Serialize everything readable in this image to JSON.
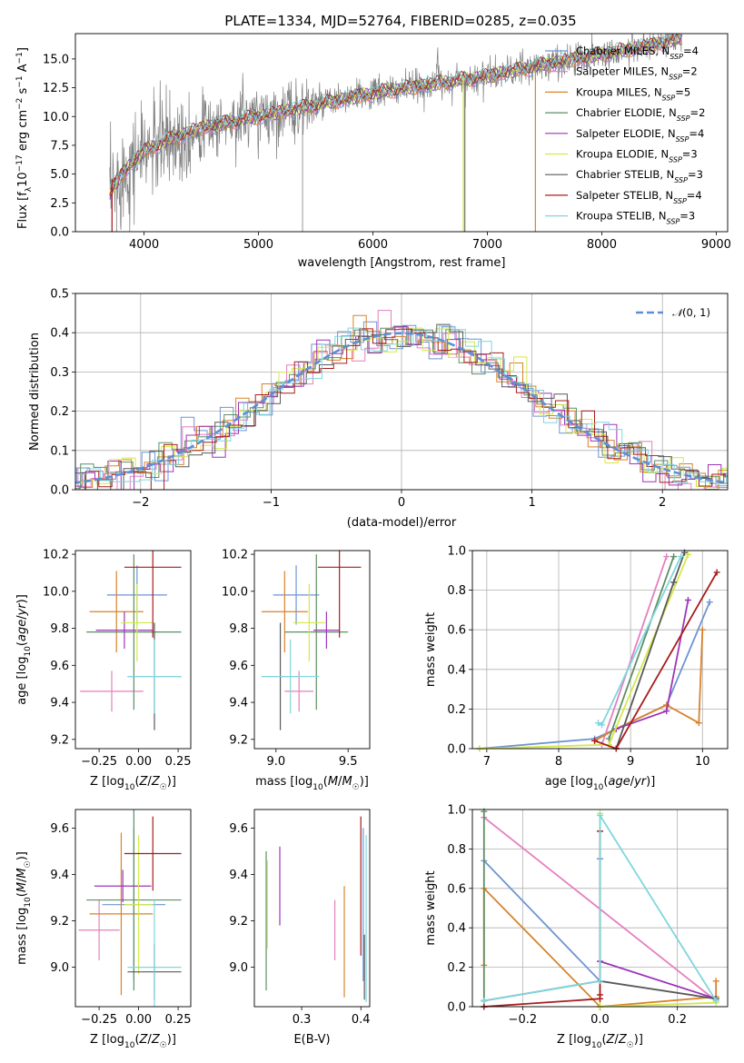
{
  "title": "PLATE=1334, MJD=52764, FIBERID=0285, z=0.035",
  "colors": {
    "Chabrier MILES": "#6f94d4",
    "Salpeter MILES": "#e47fbf",
    "Kroupa MILES": "#d9822b",
    "Chabrier ELODIE": "#5d8f63",
    "Salpeter ELODIE": "#9c35b8",
    "Kroupa ELODIE": "#d4e84a",
    "Chabrier STELIB": "#5a5a5a",
    "Salpeter STELIB": "#a81c1c",
    "Kroupa STELIB": "#7fd6de",
    "data": "#808080",
    "gauss": "#5b8fd6"
  },
  "chart_data": [
    {
      "id": "spectrum",
      "type": "line",
      "xlabel": "wavelength [Angstrom, rest frame]",
      "ylabel": "Flux [f$_\\lambda$10$^{-17}$ erg cm$^{-2}$ s$^{-1}$ A$^{-1}$]",
      "xlim": [
        3400,
        9100
      ],
      "ylim": [
        0,
        17.2
      ],
      "xticks": [
        4000,
        5000,
        6000,
        7000,
        8000,
        9000
      ],
      "yticks": [
        0.0,
        2.5,
        5.0,
        7.5,
        10.0,
        12.5,
        15.0
      ],
      "grid": false,
      "legend_position": "top-right",
      "x_range": [
        3700,
        8700
      ],
      "continuum_x": [
        3700,
        3800,
        4000,
        4300,
        4500,
        5000,
        5500,
        6000,
        6500,
        7000,
        7500,
        8000,
        8500,
        8700
      ],
      "continuum_y": [
        3.2,
        5.0,
        7.0,
        8.3,
        9.0,
        10.0,
        11.0,
        12.0,
        12.8,
        13.5,
        14.5,
        15.4,
        16.3,
        16.8
      ],
      "legend": [
        {
          "name": "Chabrier MILES",
          "nssp": "4"
        },
        {
          "name": "Salpeter MILES",
          "nssp": "2"
        },
        {
          "name": "Kroupa MILES",
          "nssp": "5"
        },
        {
          "name": "Chabrier ELODIE",
          "nssp": "2"
        },
        {
          "name": "Salpeter ELODIE",
          "nssp": "4"
        },
        {
          "name": "Kroupa ELODIE",
          "nssp": "3"
        },
        {
          "name": "Chabrier STELIB",
          "nssp": "3"
        },
        {
          "name": "Salpeter STELIB",
          "nssp": "4"
        },
        {
          "name": "Kroupa STELIB",
          "nssp": "3"
        }
      ]
    },
    {
      "id": "residuals",
      "type": "histogram",
      "xlabel": "(data-model)/error",
      "ylabel": "Normed distribution",
      "xlim": [
        -2.5,
        2.5
      ],
      "ylim": [
        0,
        0.5
      ],
      "xticks": [
        -2,
        -1,
        0,
        1,
        2
      ],
      "yticks": [
        0.0,
        0.1,
        0.2,
        0.3,
        0.4,
        0.5
      ],
      "grid": true,
      "bin_width": 0.1,
      "legend_position": "top-right",
      "legend_label": "N(0,1)"
    },
    {
      "id": "age_vs_Z",
      "type": "errorbar",
      "xlabel": "Z [log10(Z/Z☉)]",
      "ylabel": "age  [log10(age/yr)]",
      "xlim": [
        -0.4,
        0.33
      ],
      "ylim": [
        9.15,
        10.22
      ],
      "xticks": [
        -0.25,
        0.0,
        0.25
      ],
      "yticks": [
        9.2,
        9.4,
        9.6,
        9.8,
        10.0,
        10.2
      ],
      "points": [
        {
          "model": "Chabrier MILES",
          "x": -0.01,
          "xerr": 0.19,
          "y": 9.98,
          "yerr": 0.16
        },
        {
          "model": "Salpeter MILES",
          "x": -0.17,
          "xerr": 0.2,
          "y": 9.46,
          "yerr": 0.11
        },
        {
          "model": "Kroupa MILES",
          "x": -0.14,
          "xerr": 0.17,
          "y": 9.89,
          "yerr": 0.22
        },
        {
          "model": "Chabrier ELODIE",
          "x": -0.03,
          "xerr": 0.3,
          "y": 9.78,
          "yerr": 0.42
        },
        {
          "model": "Salpeter ELODIE",
          "x": -0.09,
          "xerr": 0.18,
          "y": 9.79,
          "yerr": 0.1
        },
        {
          "model": "Kroupa ELODIE",
          "x": -0.01,
          "xerr": 0.1,
          "y": 9.83,
          "yerr": 0.21
        },
        {
          "model": "Chabrier STELIB",
          "x": 0.1,
          "xerr": 0.17,
          "y": 9.54,
          "yerr": 0.29
        },
        {
          "model": "Salpeter STELIB",
          "x": 0.09,
          "xerr": 0.18,
          "y": 10.13,
          "yerr": 0.38
        },
        {
          "model": "Kroupa STELIB",
          "x": 0.1,
          "xerr": 0.17,
          "y": 9.54,
          "yerr": 0.2
        }
      ]
    },
    {
      "id": "age_vs_mass",
      "type": "errorbar",
      "xlabel": "mass [log10(M/M☉)]",
      "ylabel": "",
      "xlim": [
        8.85,
        9.65
      ],
      "ylim": [
        9.15,
        10.22
      ],
      "xticks": [
        9.0,
        9.5
      ],
      "yticks": [
        9.2,
        9.4,
        9.6,
        9.8,
        10.0,
        10.2
      ],
      "points": [
        {
          "model": "Chabrier MILES",
          "x": 9.14,
          "xerr": 0.16,
          "y": 9.98,
          "yerr": 0.16
        },
        {
          "model": "Salpeter MILES",
          "x": 9.16,
          "xerr": 0.1,
          "y": 9.46,
          "yerr": 0.11
        },
        {
          "model": "Kroupa MILES",
          "x": 9.06,
          "xerr": 0.16,
          "y": 9.89,
          "yerr": 0.22
        },
        {
          "model": "Chabrier ELODIE",
          "x": 9.28,
          "xerr": 0.22,
          "y": 9.78,
          "yerr": 0.42
        },
        {
          "model": "Salpeter ELODIE",
          "x": 9.35,
          "xerr": 0.09,
          "y": 9.79,
          "yerr": 0.1
        },
        {
          "model": "Kroupa ELODIE",
          "x": 9.23,
          "xerr": 0.11,
          "y": 9.83,
          "yerr": 0.21
        },
        {
          "model": "Chabrier STELIB",
          "x": 9.03,
          "xerr": 0.13,
          "y": 9.54,
          "yerr": 0.29
        },
        {
          "model": "Salpeter STELIB",
          "x": 9.44,
          "xerr": 0.15,
          "y": 10.13,
          "yerr": 0.38
        },
        {
          "model": "Kroupa STELIB",
          "x": 9.1,
          "xerr": 0.2,
          "y": 9.54,
          "yerr": 0.2
        }
      ]
    },
    {
      "id": "weight_vs_age",
      "type": "line",
      "xlabel": "age  [log10(age/yr)]",
      "ylabel": "mass weight",
      "xlim": [
        6.8,
        10.35
      ],
      "ylim": [
        0,
        1
      ],
      "xticks": [
        7,
        8,
        9,
        10
      ],
      "yticks": [
        0.0,
        0.2,
        0.4,
        0.6,
        0.8,
        1.0
      ],
      "grid": true,
      "series": [
        {
          "model": "Chabrier MILES",
          "x": [
            6.9,
            8.5,
            8.8,
            9.5,
            10.1
          ],
          "y": [
            0.0,
            0.05,
            0.1,
            0.22,
            0.74
          ]
        },
        {
          "model": "Salpeter MILES",
          "x": [
            8.6,
            9.5
          ],
          "y": [
            0.02,
            0.97
          ]
        },
        {
          "model": "Kroupa MILES",
          "x": [
            8.5,
            8.8,
            9.5,
            9.95,
            10.0
          ],
          "y": [
            0.04,
            0.1,
            0.22,
            0.13,
            0.6
          ]
        },
        {
          "model": "Chabrier ELODIE",
          "x": [
            8.7,
            9.6
          ],
          "y": [
            0.05,
            0.97
          ]
        },
        {
          "model": "Salpeter ELODIE",
          "x": [
            8.8,
            9.5,
            9.8
          ],
          "y": [
            0.1,
            0.19,
            0.75
          ]
        },
        {
          "model": "Kroupa ELODIE",
          "x": [
            6.9,
            8.7,
            9.8
          ],
          "y": [
            0.0,
            0.02,
            0.98
          ]
        },
        {
          "model": "Chabrier STELIB",
          "x": [
            8.8,
            9.6,
            9.75
          ],
          "y": [
            0.0,
            0.84,
            0.99
          ]
        },
        {
          "model": "Salpeter STELIB",
          "x": [
            8.5,
            8.8,
            10.2
          ],
          "y": [
            0.04,
            0.0,
            0.89
          ]
        },
        {
          "model": "Kroupa STELIB",
          "x": [
            8.55,
            8.6,
            9.7
          ],
          "y": [
            0.13,
            0.12,
            0.97
          ]
        }
      ]
    },
    {
      "id": "mass_vs_Z",
      "type": "errorbar",
      "xlabel": "Z [log10(Z/Z☉)]",
      "ylabel": "mass [log10(M/M☉)]",
      "xlim": [
        -0.4,
        0.33
      ],
      "ylim": [
        8.83,
        9.68
      ],
      "xticks": [
        -0.25,
        0.0,
        0.25
      ],
      "yticks": [
        9.0,
        9.2,
        9.4,
        9.6
      ],
      "points": [
        {
          "model": "Chabrier MILES",
          "x": -0.03,
          "xerr": 0.2,
          "y": 9.27,
          "yerr": 0.33
        },
        {
          "model": "Salpeter MILES",
          "x": -0.25,
          "xerr": 0.13,
          "y": 9.16,
          "yerr": 0.13
        },
        {
          "model": "Kroupa MILES",
          "x": -0.11,
          "xerr": 0.2,
          "y": 9.23,
          "yerr": 0.35
        },
        {
          "model": "Chabrier ELODIE",
          "x": -0.03,
          "xerr": 0.3,
          "y": 9.29,
          "yerr": 0.39
        },
        {
          "model": "Salpeter ELODIE",
          "x": -0.1,
          "xerr": 0.18,
          "y": 9.35,
          "yerr": 0.07
        },
        {
          "model": "Kroupa ELODIE",
          "x": 0.0,
          "xerr": 0.09,
          "y": 9.27,
          "yerr": 0.3
        },
        {
          "model": "Chabrier STELIB",
          "x": 0.1,
          "xerr": 0.17,
          "y": 8.98,
          "yerr": 0.12
        },
        {
          "model": "Salpeter STELIB",
          "x": 0.09,
          "xerr": 0.18,
          "y": 9.49,
          "yerr": 0.16
        },
        {
          "model": "Kroupa STELIB",
          "x": 0.1,
          "xerr": 0.17,
          "y": 9.0,
          "yerr": 0.29
        }
      ]
    },
    {
      "id": "mass_vs_ebv",
      "type": "errorbar",
      "xlabel": "E(B-V)",
      "ylabel": "",
      "xlim": [
        0.22,
        0.415
      ],
      "ylim": [
        8.83,
        9.68
      ],
      "xticks": [
        0.3,
        0.4
      ],
      "yticks": [
        9.0,
        9.2,
        9.4,
        9.6
      ],
      "points": [
        {
          "model": "Chabrier MILES",
          "x": 0.404,
          "y": 9.27,
          "yerr": 0.33
        },
        {
          "model": "Salpeter MILES",
          "x": 0.356,
          "y": 9.16,
          "yerr": 0.13
        },
        {
          "model": "Kroupa MILES",
          "x": 0.372,
          "y": 9.11,
          "yerr": 0.24
        },
        {
          "model": "Chabrier ELODIE",
          "x": 0.24,
          "y": 9.2,
          "yerr": 0.3
        },
        {
          "model": "Salpeter ELODIE",
          "x": 0.263,
          "y": 9.35,
          "yerr": 0.17
        },
        {
          "model": "Kroupa ELODIE",
          "x": 0.242,
          "y": 9.27,
          "yerr": 0.19
        },
        {
          "model": "Chabrier STELIB",
          "x": 0.406,
          "y": 9.0,
          "yerr": 0.14
        },
        {
          "model": "Salpeter STELIB",
          "x": 0.4,
          "y": 9.35,
          "yerr": 0.3
        },
        {
          "model": "Kroupa STELIB",
          "x": 0.409,
          "y": 9.21,
          "yerr": 0.36
        }
      ]
    },
    {
      "id": "weight_vs_Z",
      "type": "line",
      "xlabel": "Z [log10(Z/Z☉)]",
      "ylabel": "mass weight",
      "xlim": [
        -0.33,
        0.33
      ],
      "ylim": [
        0,
        1
      ],
      "xticks": [
        -0.2,
        0.0,
        0.2
      ],
      "yticks": [
        0.0,
        0.2,
        0.4,
        0.6,
        0.8,
        1.0
      ],
      "grid": true,
      "series": [
        {
          "model": "Chabrier MILES",
          "x": [
            -0.3,
            0.0,
            0.0,
            0.0
          ],
          "y": [
            0.74,
            0.13,
            0.23,
            0.75
          ]
        },
        {
          "model": "Salpeter MILES",
          "x": [
            -0.3,
            0.3
          ],
          "y": [
            0.96,
            0.03
          ]
        },
        {
          "model": "Kroupa MILES",
          "x": [
            -0.3,
            -0.3,
            0.0,
            0.3,
            0.3
          ],
          "y": [
            0.21,
            0.6,
            0.0,
            0.05,
            0.13
          ]
        },
        {
          "model": "Chabrier ELODIE",
          "x": [
            -0.3,
            -0.3
          ],
          "y": [
            0.0,
            0.99
          ]
        },
        {
          "model": "Salpeter ELODIE",
          "x": [
            0.0,
            0.3
          ],
          "y": [
            0.23,
            0.04
          ]
        },
        {
          "model": "Kroupa ELODIE",
          "x": [
            0.0,
            0.0,
            0.3
          ],
          "y": [
            0.98,
            0.0,
            0.02
          ]
        },
        {
          "model": "Chabrier STELIB",
          "x": [
            -0.3,
            0.0,
            0.3
          ],
          "y": [
            0.03,
            0.13,
            0.04
          ]
        },
        {
          "model": "Salpeter STELIB",
          "x": [
            -0.3,
            0.0,
            0.0,
            0.0
          ],
          "y": [
            0.0,
            0.04,
            0.06,
            0.89
          ]
        },
        {
          "model": "Kroupa STELIB",
          "x": [
            -0.3,
            0.0,
            0.0,
            0.3
          ],
          "y": [
            0.03,
            0.13,
            0.97,
            0.03
          ]
        }
      ]
    }
  ]
}
